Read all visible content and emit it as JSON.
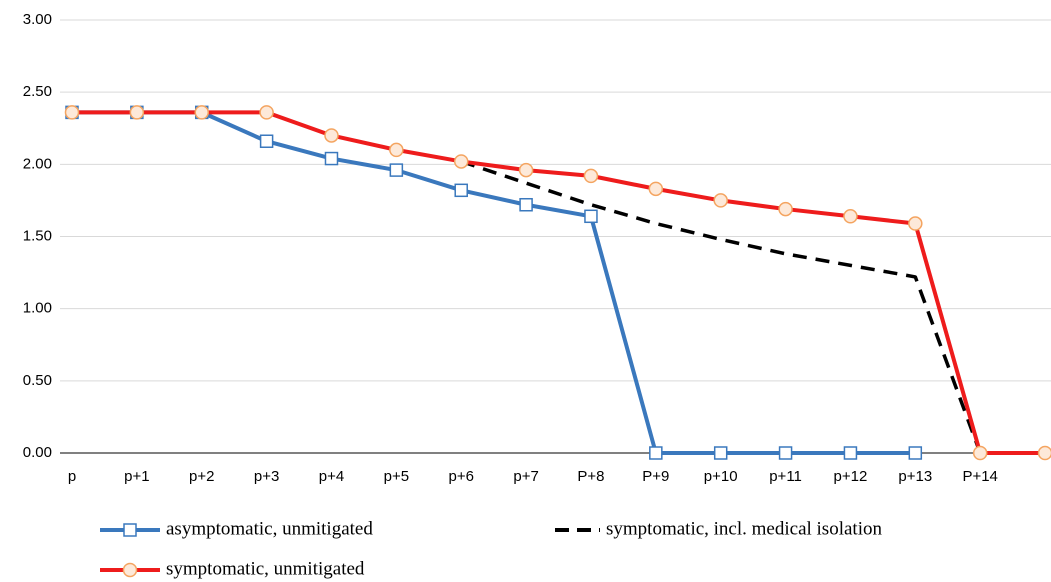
{
  "chart_data": {
    "type": "line",
    "categories": [
      "p",
      "p+1",
      "p+2",
      "p+3",
      "p+4",
      "p+5",
      "p+6",
      "p+7",
      "P+8",
      "P+9",
      "p+10",
      "p+11",
      "p+12",
      "p+13",
      "P+14",
      null
    ],
    "series": [
      {
        "name": "asymptomatic, unmitigated",
        "color": "#3a78bd",
        "marker": "square",
        "dash": false,
        "values": [
          2.36,
          2.36,
          2.36,
          2.16,
          2.04,
          1.96,
          1.82,
          1.72,
          1.64,
          0,
          0,
          0,
          0,
          0,
          null,
          null
        ]
      },
      {
        "name": "symptomatic, incl. medical isolation",
        "color": "#000000",
        "marker": null,
        "dash": true,
        "values": [
          null,
          null,
          null,
          null,
          null,
          null,
          2.02,
          1.87,
          1.72,
          1.59,
          1.48,
          1.38,
          1.3,
          1.22,
          0,
          null
        ]
      },
      {
        "name": "symptomatic, unmitigated",
        "color": "#ee1c1c",
        "marker": "circle",
        "markerColor": "#f4a460",
        "dash": false,
        "values": [
          2.36,
          2.36,
          2.36,
          2.36,
          2.2,
          2.1,
          2.02,
          1.96,
          1.92,
          1.83,
          1.75,
          1.69,
          1.64,
          1.59,
          0,
          0
        ]
      }
    ],
    "ylim": [
      0,
      3
    ],
    "yticks": [
      {
        "value": 0,
        "label": "0.00"
      },
      {
        "value": 0.5,
        "label": "0.50"
      },
      {
        "value": 1,
        "label": "1.00"
      },
      {
        "value": 1.5,
        "label": "1.50"
      },
      {
        "value": 2,
        "label": "2.00"
      },
      {
        "value": 2.5,
        "label": "2.50"
      },
      {
        "value": 3,
        "label": "3.00"
      }
    ],
    "grid": true
  }
}
